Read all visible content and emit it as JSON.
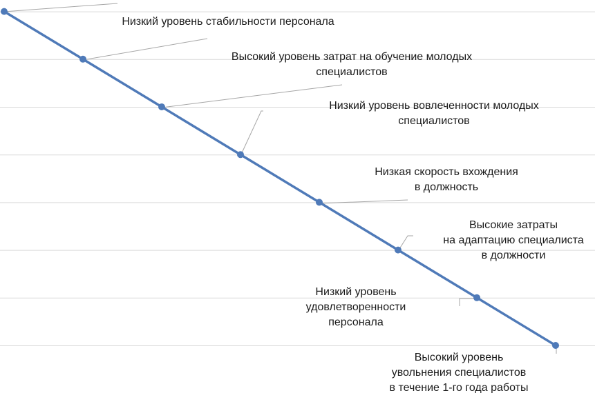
{
  "chart_data": {
    "type": "line",
    "title": "",
    "xlabel": "",
    "ylabel": "",
    "grid": true,
    "legend": "none",
    "series_color": "#4f7ab8",
    "x": [
      1,
      2,
      3,
      4,
      5,
      6,
      7,
      8
    ],
    "series": [
      {
        "values": [
          8,
          7,
          6,
          5,
          4,
          3,
          2,
          1
        ]
      }
    ],
    "ylim": [
      0.5,
      8.25
    ],
    "annotations": [
      {
        "point": 0,
        "lines": [
          "Низкий уровень стабильности персонала"
        ]
      },
      {
        "point": 1,
        "lines": [
          "Высокий уровень затрат на обучение молодых",
          "специалистов"
        ]
      },
      {
        "point": 2,
        "lines": [
          "Низкий уровень вовлеченности молодых",
          "специалистов"
        ]
      },
      {
        "point": 3,
        "lines": [
          "Низкая скорость вхождения",
          "в должность"
        ]
      },
      {
        "point": 4,
        "lines": [
          "Высокие затраты",
          "на адаптацию специалиста",
          "в должности"
        ]
      },
      {
        "point": 5,
        "lines": [
          "Низкий уровень",
          "удовлетворенности",
          "персонала"
        ]
      },
      {
        "point": 6,
        "lines": [
          "Высокий уровень",
          "увольнения специалистов",
          "в течение 1-го года работы"
        ]
      }
    ]
  }
}
